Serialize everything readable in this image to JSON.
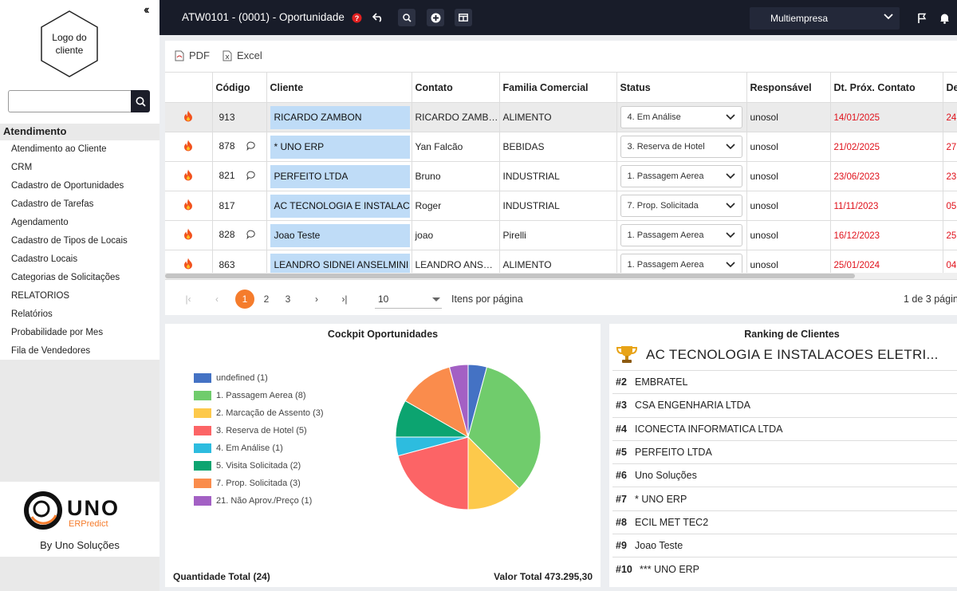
{
  "sidebar": {
    "logo_text": "Logo do cliente",
    "search_placeholder": "",
    "section_title": "Atendimento",
    "items": [
      "Atendimento ao Cliente",
      "CRM",
      "Cadastro de Oportunidades",
      "Cadastro de Tarefas",
      "Agendamento",
      "Cadastro de Tipos de Locais",
      "Cadastro Locais",
      "Categorias de Solicitações",
      "RELATORIOS",
      "Relatórios",
      "Probabilidade por Mes",
      "Fila de Vendedores"
    ],
    "brand_logo_text": "UNO",
    "brand_logo_sub": "ERPredict",
    "brand_by": "By Uno Soluções"
  },
  "topbar": {
    "title": "ATW0101 - (0001) - Oportunidade",
    "company": "Multiempresa"
  },
  "export": {
    "pdf": "PDF",
    "excel": "Excel"
  },
  "grid": {
    "columns": [
      "",
      "Código",
      "Cliente",
      "Contato",
      "Familia Comercial",
      "Status",
      "Responsável",
      "Dt. Próx. Contato",
      "De"
    ],
    "rows": [
      {
        "codigo": "913",
        "chat": false,
        "cliente": "RICARDO ZAMBON",
        "contato": "RICARDO ZAMBON",
        "familia": "ALIMENTO",
        "status": "4. Em Análise",
        "responsavel": "unosol",
        "dt": "14/01/2025",
        "de": "24"
      },
      {
        "codigo": "878",
        "chat": true,
        "cliente": "* UNO ERP",
        "contato": "Yan Falcão",
        "familia": "BEBIDAS",
        "status": "3. Reserva de Hotel",
        "responsavel": "unosol",
        "dt": "21/02/2025",
        "de": "27"
      },
      {
        "codigo": "821",
        "chat": true,
        "cliente": "PERFEITO LTDA",
        "contato": "Bruno",
        "familia": "INDUSTRIAL",
        "status": "1. Passagem Aerea",
        "responsavel": "unosol",
        "dt": "23/06/2023",
        "de": "23"
      },
      {
        "codigo": "817",
        "chat": false,
        "cliente": "AC TECNOLOGIA E INSTALACOES ELETRICAS",
        "contato": "Roger",
        "familia": "INDUSTRIAL",
        "status": "7. Prop. Solicitada",
        "responsavel": "unosol",
        "dt": "11/11/2023",
        "de": "05"
      },
      {
        "codigo": "828",
        "chat": true,
        "cliente": "Joao Teste",
        "contato": "joao",
        "familia": "Pirelli",
        "status": "1. Passagem Aerea",
        "responsavel": "unosol",
        "dt": "16/12/2023",
        "de": "25"
      },
      {
        "codigo": "863",
        "chat": false,
        "cliente": "LEANDRO SIDNEI ANSELMINI",
        "contato": "LEANDRO ANSELMINI",
        "familia": "ALIMENTO",
        "status": "1. Passagem Aerea",
        "responsavel": "unosol",
        "dt": "25/01/2024",
        "de": "04"
      }
    ]
  },
  "pager": {
    "pages": [
      "1",
      "2",
      "3"
    ],
    "current": "1",
    "per_page": "10",
    "per_page_label": "Itens por página",
    "info": "1 de 3 págin"
  },
  "cockpit": {
    "title": "Cockpit Oportunidades",
    "total_qty": "Quantidade Total (24)",
    "total_value": "Valor Total 473.295,30"
  },
  "chart_data": {
    "type": "pie",
    "title": "Cockpit Oportunidades",
    "legend_position": "left",
    "slices": [
      {
        "label": "undefined (1)",
        "value": 1,
        "color": "#4472c4"
      },
      {
        "label": "1. Passagem Aerea (8)",
        "value": 8,
        "color": "#70cc6c"
      },
      {
        "label": "2. Marcação de Assento (3)",
        "value": 3,
        "color": "#fdc94b"
      },
      {
        "label": "3. Reserva de Hotel (5)",
        "value": 5,
        "color": "#fc6466"
      },
      {
        "label": "4. Em Análise (1)",
        "value": 1,
        "color": "#2dbcdf"
      },
      {
        "label": "5. Visita Solicitada (2)",
        "value": 2,
        "color": "#0ca470"
      },
      {
        "label": "7. Prop. Solicitada (3)",
        "value": 3,
        "color": "#fa8c4c"
      },
      {
        "label": "21. Não Aprov./Preço (1)",
        "value": 1,
        "color": "#a360c4"
      }
    ]
  },
  "ranking": {
    "title": "Ranking de Clientes",
    "top": "AC TECNOLOGIA E INSTALACOES ELETRI...",
    "rows": [
      {
        "pos": "#2",
        "name": "EMBRATEL"
      },
      {
        "pos": "#3",
        "name": "CSA ENGENHARIA LTDA"
      },
      {
        "pos": "#4",
        "name": "ICONECTA INFORMATICA LTDA"
      },
      {
        "pos": "#5",
        "name": "PERFEITO LTDA"
      },
      {
        "pos": "#6",
        "name": "Uno Soluções"
      },
      {
        "pos": "#7",
        "name": "* UNO ERP"
      },
      {
        "pos": "#8",
        "name": "ECIL MET TEC2"
      },
      {
        "pos": "#9",
        "name": "Joao Teste"
      },
      {
        "pos": "#10",
        "name": "*** UNO ERP"
      }
    ]
  },
  "colors": {
    "topbar": "#181c29",
    "accent": "#f57c2c",
    "cliente_bg": "#bfdcf7",
    "date_red": "#e0101a"
  }
}
